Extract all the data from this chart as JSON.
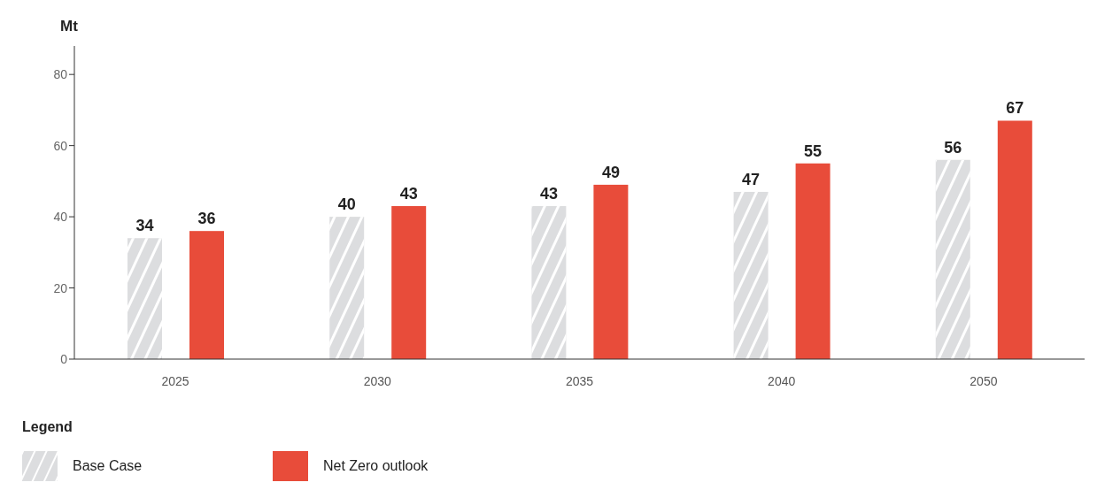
{
  "chart_data": {
    "type": "bar",
    "ylabel": "Mt",
    "legend_title": "Legend",
    "categories": [
      "2025",
      "2030",
      "2035",
      "2040",
      "2050"
    ],
    "series": [
      {
        "name": "Base Case",
        "color": "#dcdddf",
        "values": [
          34,
          40,
          43,
          47,
          56
        ]
      },
      {
        "name": "Net Zero outlook",
        "color": "#e84c3a",
        "values": [
          36,
          43,
          49,
          55,
          67
        ]
      }
    ],
    "ylim": [
      0,
      88
    ],
    "yticks": [
      0,
      20,
      40,
      60,
      80
    ],
    "grid": false,
    "legend": "bottom",
    "data_labels": true
  }
}
